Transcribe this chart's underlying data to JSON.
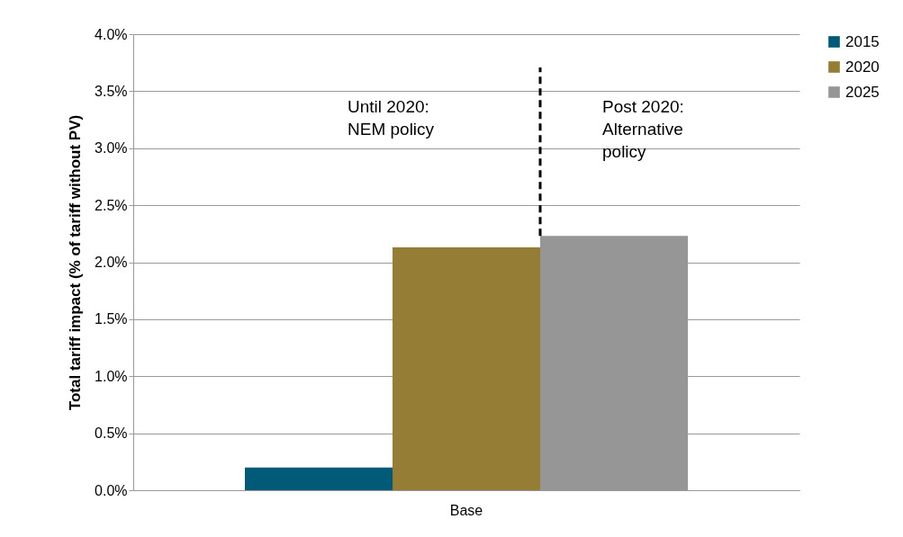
{
  "chart_data": {
    "type": "bar",
    "ylabel": "Total tariff impact (% of tariff without PV)",
    "categories": [
      "Base"
    ],
    "series": [
      {
        "name": "2015",
        "color": "#005a78",
        "values": [
          0.2
        ]
      },
      {
        "name": "2020",
        "color": "#957d35",
        "values": [
          2.13
        ]
      },
      {
        "name": "2025",
        "color": "#969696",
        "values": [
          2.23
        ]
      }
    ],
    "ylim": [
      0,
      4
    ],
    "yticks": [
      {
        "value": 0,
        "label": "0.0%"
      },
      {
        "value": 0.5,
        "label": "0.5%"
      },
      {
        "value": 1,
        "label": "1.0%"
      },
      {
        "value": 1.5,
        "label": "1.5%"
      },
      {
        "value": 2,
        "label": "2.0%"
      },
      {
        "value": 2.5,
        "label": "2.5%"
      },
      {
        "value": 3,
        "label": "3.0%"
      },
      {
        "value": 3.5,
        "label": "3.5%"
      },
      {
        "value": 4,
        "label": "4.0%"
      }
    ],
    "grid": "y",
    "legend": "right",
    "ref_lines": [
      {
        "axis": "x",
        "value": "Base",
        "color": "#000000",
        "line_style": "dashed"
      }
    ],
    "annotations": [
      "Until 2020:\nNEM policy",
      "Post 2020:\nAlternative\npolicy"
    ]
  }
}
